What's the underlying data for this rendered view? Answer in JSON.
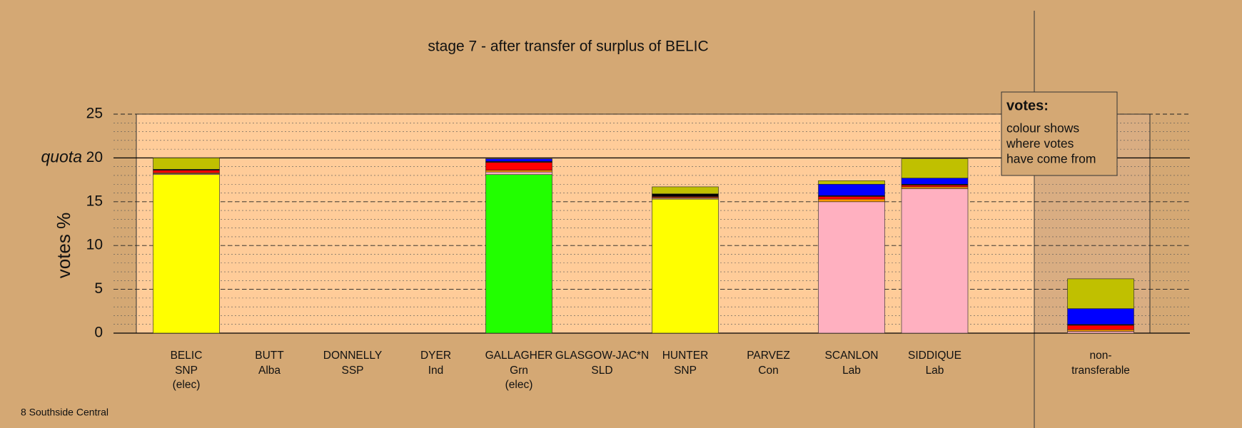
{
  "chart_data": {
    "type": "bar",
    "stacked": true,
    "title": "stage 7 - after transfer of surplus of BELIC",
    "y_label": "votes %",
    "categories": [
      "BELIC",
      "BUTT",
      "DONNELLY",
      "DYER",
      "GALLAGHER",
      "GLASGOW-JAC*N",
      "HUNTER",
      "PARVEZ",
      "SCANLON",
      "SIDDIQUE",
      "non-"
    ],
    "parties": [
      "SNP",
      "Alba",
      "SSP",
      "Ind",
      "Grn",
      "SLD",
      "SNP",
      "Con",
      "Lab",
      "Lab",
      "transferable"
    ],
    "notes": [
      "(elec)",
      null,
      null,
      null,
      "(elec)",
      null,
      null,
      null,
      null,
      null,
      null
    ],
    "series": [
      {
        "color": "#ffff00",
        "values": [
          18.1,
          0,
          0,
          0,
          0,
          0,
          15.3,
          0,
          0,
          0,
          0
        ]
      },
      {
        "color": "#22ff00",
        "values": [
          0,
          0,
          0,
          0,
          18.1,
          0,
          0,
          0,
          0,
          0,
          0
        ]
      },
      {
        "color": "#ffb0c0",
        "values": [
          0.1,
          0,
          0,
          0,
          0.3,
          0,
          0.1,
          0,
          15.0,
          16.5,
          0.2
        ]
      },
      {
        "color": "#ff9900",
        "values": [
          0.1,
          0,
          0,
          0,
          0.2,
          0,
          0.1,
          0,
          0.3,
          0.2,
          0.2
        ]
      },
      {
        "color": "#ff0000",
        "values": [
          0.3,
          0,
          0,
          0,
          0.9,
          0,
          0.1,
          0,
          0.3,
          0.2,
          0.5
        ]
      },
      {
        "color": "#000000",
        "values": [
          0.1,
          0,
          0,
          0,
          0.1,
          0,
          0.3,
          0,
          0.1,
          0.1,
          0.1
        ]
      },
      {
        "color": "#0000ff",
        "values": [
          0,
          0,
          0,
          0,
          0.3,
          0,
          0,
          0,
          1.3,
          0.7,
          1.8
        ]
      },
      {
        "color": "#c0c000",
        "values": [
          1.3,
          0,
          0,
          0,
          0,
          0,
          0.8,
          0,
          0.4,
          2.2,
          3.4
        ]
      }
    ],
    "ylim": [
      0,
      25
    ],
    "yticks": [
      0,
      5,
      10,
      15,
      20,
      25
    ],
    "minor_grid_step": 1,
    "quota": {
      "value": 20,
      "label": "quota"
    },
    "legend": {
      "title": "votes:",
      "lines": [
        "colour shows",
        "where votes",
        "have come from"
      ]
    },
    "footer": "8 Southside Central"
  }
}
